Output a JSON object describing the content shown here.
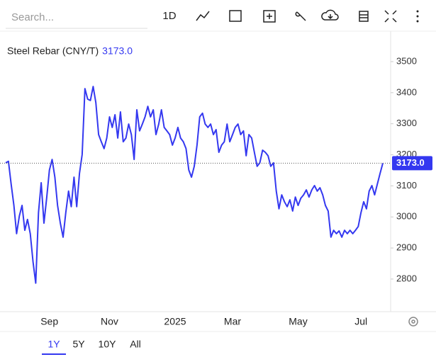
{
  "toolbar": {
    "search_placeholder": "Search...",
    "interval": "1D"
  },
  "chart_data": {
    "type": "line",
    "title": "Steel Rebar (CNY/T)",
    "color": "#3438f0",
    "last_value": {
      "value": 3173,
      "label": "3173.0"
    },
    "categories": [
      null,
      null,
      null,
      null,
      null,
      null,
      null,
      null,
      null,
      null,
      null,
      null,
      null,
      null,
      null,
      null,
      "Sep",
      null,
      null,
      null,
      null,
      null,
      null,
      null,
      null,
      null,
      null,
      null,
      null,
      null,
      null,
      null,
      null,
      null,
      null,
      null,
      null,
      null,
      "Nov",
      null,
      null,
      null,
      null,
      null,
      null,
      null,
      null,
      null,
      null,
      null,
      null,
      null,
      null,
      null,
      null,
      null,
      null,
      null,
      null,
      null,
      null,
      null,
      "2025",
      null,
      null,
      null,
      null,
      null,
      null,
      null,
      null,
      null,
      null,
      null,
      null,
      null,
      null,
      null,
      null,
      null,
      null,
      null,
      null,
      "Mar",
      null,
      null,
      null,
      null,
      null,
      null,
      null,
      null,
      null,
      null,
      null,
      null,
      null,
      null,
      null,
      null,
      null,
      null,
      null,
      null,
      null,
      null,
      null,
      "May",
      null,
      null,
      null,
      null,
      null,
      null,
      null,
      null,
      null,
      null,
      null,
      null,
      null,
      null,
      null,
      null,
      null,
      null,
      null,
      null,
      null,
      null,
      "Jul",
      null,
      null,
      null,
      null,
      null,
      null,
      null,
      null
    ],
    "values": [
      3174,
      3179,
      3106,
      3037,
      2946,
      3003,
      3037,
      2957,
      2992,
      2946,
      2855,
      2787,
      3014,
      3110,
      2980,
      3060,
      3151,
      3185,
      3128,
      3037,
      2980,
      2935,
      3014,
      3083,
      3033,
      3128,
      3033,
      3140,
      3201,
      3413,
      3379,
      3375,
      3420,
      3368,
      3265,
      3242,
      3220,
      3254,
      3322,
      3288,
      3329,
      3254,
      3338,
      3242,
      3254,
      3299,
      3265,
      3185,
      3345,
      3277,
      3299,
      3322,
      3356,
      3322,
      3345,
      3265,
      3299,
      3345,
      3288,
      3277,
      3265,
      3231,
      3254,
      3288,
      3254,
      3242,
      3220,
      3151,
      3128,
      3163,
      3231,
      3322,
      3334,
      3299,
      3288,
      3299,
      3265,
      3281,
      3208,
      3231,
      3242,
      3299,
      3242,
      3265,
      3288,
      3299,
      3265,
      3277,
      3197,
      3265,
      3254,
      3208,
      3163,
      3174,
      3215,
      3208,
      3197,
      3163,
      3174,
      3083,
      3026,
      3071,
      3049,
      3033,
      3055,
      3019,
      3064,
      3037,
      3060,
      3071,
      3087,
      3064,
      3087,
      3101,
      3083,
      3094,
      3071,
      3037,
      3019,
      2935,
      2957,
      2946,
      2955,
      2935,
      2957,
      2946,
      2957,
      2946,
      2957,
      2969,
      3014,
      3049,
      3026,
      3083,
      3101,
      3071,
      3106,
      3140,
      3173
    ],
    "ylim": [
      2695,
      3598
    ],
    "yticks": [
      2800,
      2900,
      3000,
      3100,
      3200,
      3300,
      3400,
      3500
    ]
  },
  "range_buttons": [
    "1Y",
    "5Y",
    "10Y",
    "All"
  ]
}
